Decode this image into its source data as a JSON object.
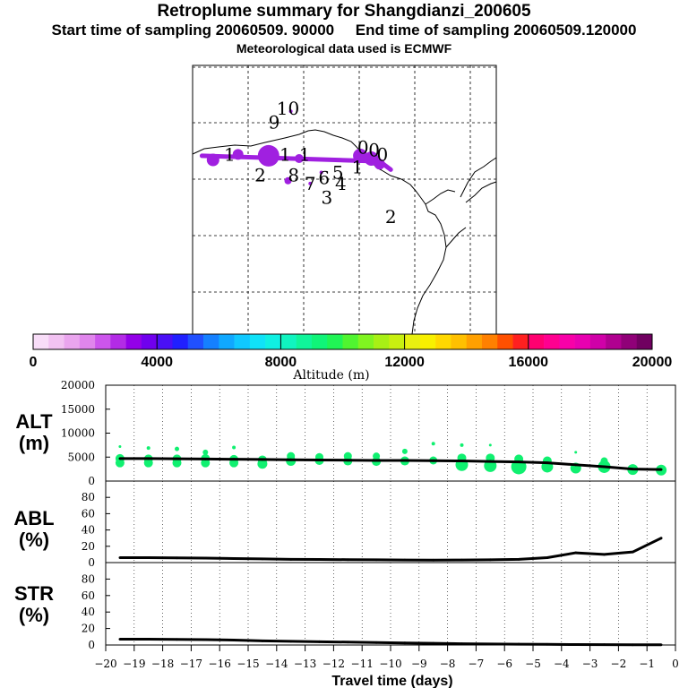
{
  "title": "Retroplume summary for Shangdianzi_200605",
  "subtitle_start": "Start time of sampling 20060509. 90000",
  "subtitle_end": "End time of sampling 20060509.120000",
  "subtitle_met": "Meteorological data used is ECMWF",
  "colorbar": {
    "label": "Altitude (m)",
    "ticks": [
      "0",
      "4000",
      "8000",
      "12000",
      "16000",
      "20000"
    ],
    "colors": [
      "#f8ddf8",
      "#f2c2f2",
      "#eaa5ee",
      "#e085ec",
      "#cc55ec",
      "#b32be6",
      "#9300e8",
      "#7000ee",
      "#4a10f6",
      "#2020ff",
      "#2050ff",
      "#1580ff",
      "#10a8ff",
      "#10c8ff",
      "#10e2f8",
      "#10f0e2",
      "#10f4c0",
      "#10f49a",
      "#10f478",
      "#20f455",
      "#50f430",
      "#80f420",
      "#a8f015",
      "#c8f010",
      "#e8f010",
      "#f8f000",
      "#ffd800",
      "#ffc000",
      "#ffa000",
      "#ff8000",
      "#ff5000",
      "#ff2020",
      "#ff0070",
      "#ff0090",
      "#f800a8",
      "#e800b0",
      "#d000a8",
      "#b00090",
      "#900078",
      "#700060"
    ]
  },
  "map": {
    "labels": [
      {
        "text": "10",
        "x": -7.5,
        "y": 1.8
      },
      {
        "text": "9",
        "x": -8.0,
        "y": 1.3
      },
      {
        "text": "2",
        "x": -8.5,
        "y": -0.6
      },
      {
        "text": "8",
        "x": -7.3,
        "y": -0.6
      },
      {
        "text": "7",
        "x": -6.7,
        "y": -0.9
      },
      {
        "text": "6",
        "x": -6.2,
        "y": -0.7
      },
      {
        "text": "5",
        "x": -5.7,
        "y": -0.5
      },
      {
        "text": "4",
        "x": -5.6,
        "y": -0.9
      },
      {
        "text": "3",
        "x": -6.1,
        "y": -1.4
      },
      {
        "text": "1",
        "x": -5.0,
        "y": -0.3
      },
      {
        "text": "2",
        "x": -3.8,
        "y": -2.1
      },
      {
        "text": "1",
        "x": -9.6,
        "y": 0.15
      },
      {
        "text": "1",
        "x": -7.6,
        "y": 0.15
      },
      {
        "text": "1",
        "x": -6.9,
        "y": 0.15
      },
      {
        "text": "0",
        "x": -4.8,
        "y": 0.4
      },
      {
        "text": "0",
        "x": -4.4,
        "y": 0.3
      },
      {
        "text": "0",
        "x": -4.1,
        "y": 0.15
      }
    ]
  },
  "chart_data": {
    "type": "line",
    "xlabel": "Travel time (days)",
    "xlim": [
      -20,
      0
    ],
    "x_ticks": [
      "−20",
      "−19",
      "−18",
      "−17",
      "−16",
      "−15",
      "−14",
      "−13",
      "−12",
      "−11",
      "−10",
      "−9",
      "−8",
      "−7",
      "−6",
      "−5",
      "−4",
      "−3",
      "−2",
      "−1",
      "0"
    ],
    "x": [
      -19.5,
      -18.5,
      -17.5,
      -16.5,
      -15.5,
      -14.5,
      -13.5,
      -12.5,
      -11.5,
      -10.5,
      -9.5,
      -8.5,
      -7.5,
      -6.5,
      -5.5,
      -4.5,
      -3.5,
      -2.5,
      -1.5,
      -0.5
    ],
    "panels": [
      {
        "name": "alt",
        "label_line1": "ALT",
        "label_line2": "(m)",
        "ylim": [
          0,
          20000
        ],
        "y_ticks": [
          {
            "v": 0,
            "t": "0"
          },
          {
            "v": 5000,
            "t": "5000"
          },
          {
            "v": 10000,
            "t": "10000"
          },
          {
            "v": 15000,
            "t": "15000"
          },
          {
            "v": 20000,
            "t": "20000"
          }
        ],
        "values": [
          4700,
          4700,
          4650,
          4600,
          4550,
          4500,
          4450,
          4400,
          4350,
          4300,
          4300,
          4250,
          4200,
          4100,
          4000,
          3800,
          3400,
          3000,
          2500,
          2400
        ],
        "clusters": [
          [
            [
              4700,
              5
            ],
            [
              3800,
              5
            ],
            [
              7200,
              1.5
            ]
          ],
          [
            [
              4600,
              5
            ],
            [
              3800,
              5
            ],
            [
              6900,
              2
            ]
          ],
          [
            [
              4600,
              5
            ],
            [
              3800,
              5
            ],
            [
              6700,
              2.5
            ]
          ],
          [
            [
              4700,
              5
            ],
            [
              3800,
              5
            ],
            [
              6000,
              3
            ]
          ],
          [
            [
              4500,
              5
            ],
            [
              3800,
              5
            ],
            [
              7000,
              2
            ]
          ],
          [
            [
              4400,
              5
            ],
            [
              3600,
              5.5
            ]
          ],
          [
            [
              4200,
              5.5
            ],
            [
              5200,
              4.5
            ]
          ],
          [
            [
              4300,
              5
            ],
            [
              5000,
              4.5
            ]
          ],
          [
            [
              4200,
              5
            ],
            [
              5200,
              4.5
            ]
          ],
          [
            [
              4100,
              5
            ],
            [
              5200,
              4
            ]
          ],
          [
            [
              4200,
              5
            ],
            [
              6200,
              3
            ]
          ],
          [
            [
              4300,
              4.5
            ],
            [
              7800,
              2
            ]
          ],
          [
            [
              3400,
              7
            ],
            [
              4800,
              5
            ],
            [
              7500,
              2
            ]
          ],
          [
            [
              3200,
              7
            ],
            [
              4800,
              5
            ],
            [
              7500,
              1.5
            ]
          ],
          [
            [
              3000,
              8.5
            ],
            [
              4600,
              5
            ]
          ],
          [
            [
              3000,
              6.5
            ],
            [
              4200,
              5
            ]
          ],
          [
            [
              2700,
              6
            ],
            [
              6000,
              1.5
            ]
          ],
          [
            [
              3000,
              7
            ],
            [
              4200,
              4
            ]
          ],
          [
            [
              2400,
              6
            ]
          ],
          [
            [
              2300,
              6
            ]
          ]
        ]
      },
      {
        "name": "abl",
        "label_line1": "ABL",
        "label_line2": "(%)",
        "ylim": [
          0,
          100
        ],
        "y_ticks": [
          {
            "v": 0,
            "t": "0"
          },
          {
            "v": 20,
            "t": "20"
          },
          {
            "v": 40,
            "t": "40"
          },
          {
            "v": 60,
            "t": "60"
          },
          {
            "v": 80,
            "t": "80"
          }
        ],
        "values": [
          6,
          6,
          5.8,
          5.5,
          5,
          4.5,
          4,
          3.8,
          3.6,
          3.4,
          3.2,
          3,
          3.2,
          3.5,
          4,
          6,
          12,
          10,
          13,
          30
        ]
      },
      {
        "name": "str",
        "label_line1": "STR",
        "label_line2": "(%)",
        "ylim": [
          0,
          100
        ],
        "y_ticks": [
          {
            "v": 0,
            "t": "0"
          },
          {
            "v": 20,
            "t": "20"
          },
          {
            "v": 40,
            "t": "40"
          },
          {
            "v": 60,
            "t": "60"
          },
          {
            "v": 80,
            "t": "80"
          }
        ],
        "values": [
          7,
          7,
          6.8,
          6.5,
          6,
          5,
          4.5,
          4,
          3.5,
          3,
          2.5,
          2,
          1.5,
          1.2,
          1,
          0.8,
          0.5,
          0.4,
          0.3,
          0.3
        ]
      }
    ]
  }
}
